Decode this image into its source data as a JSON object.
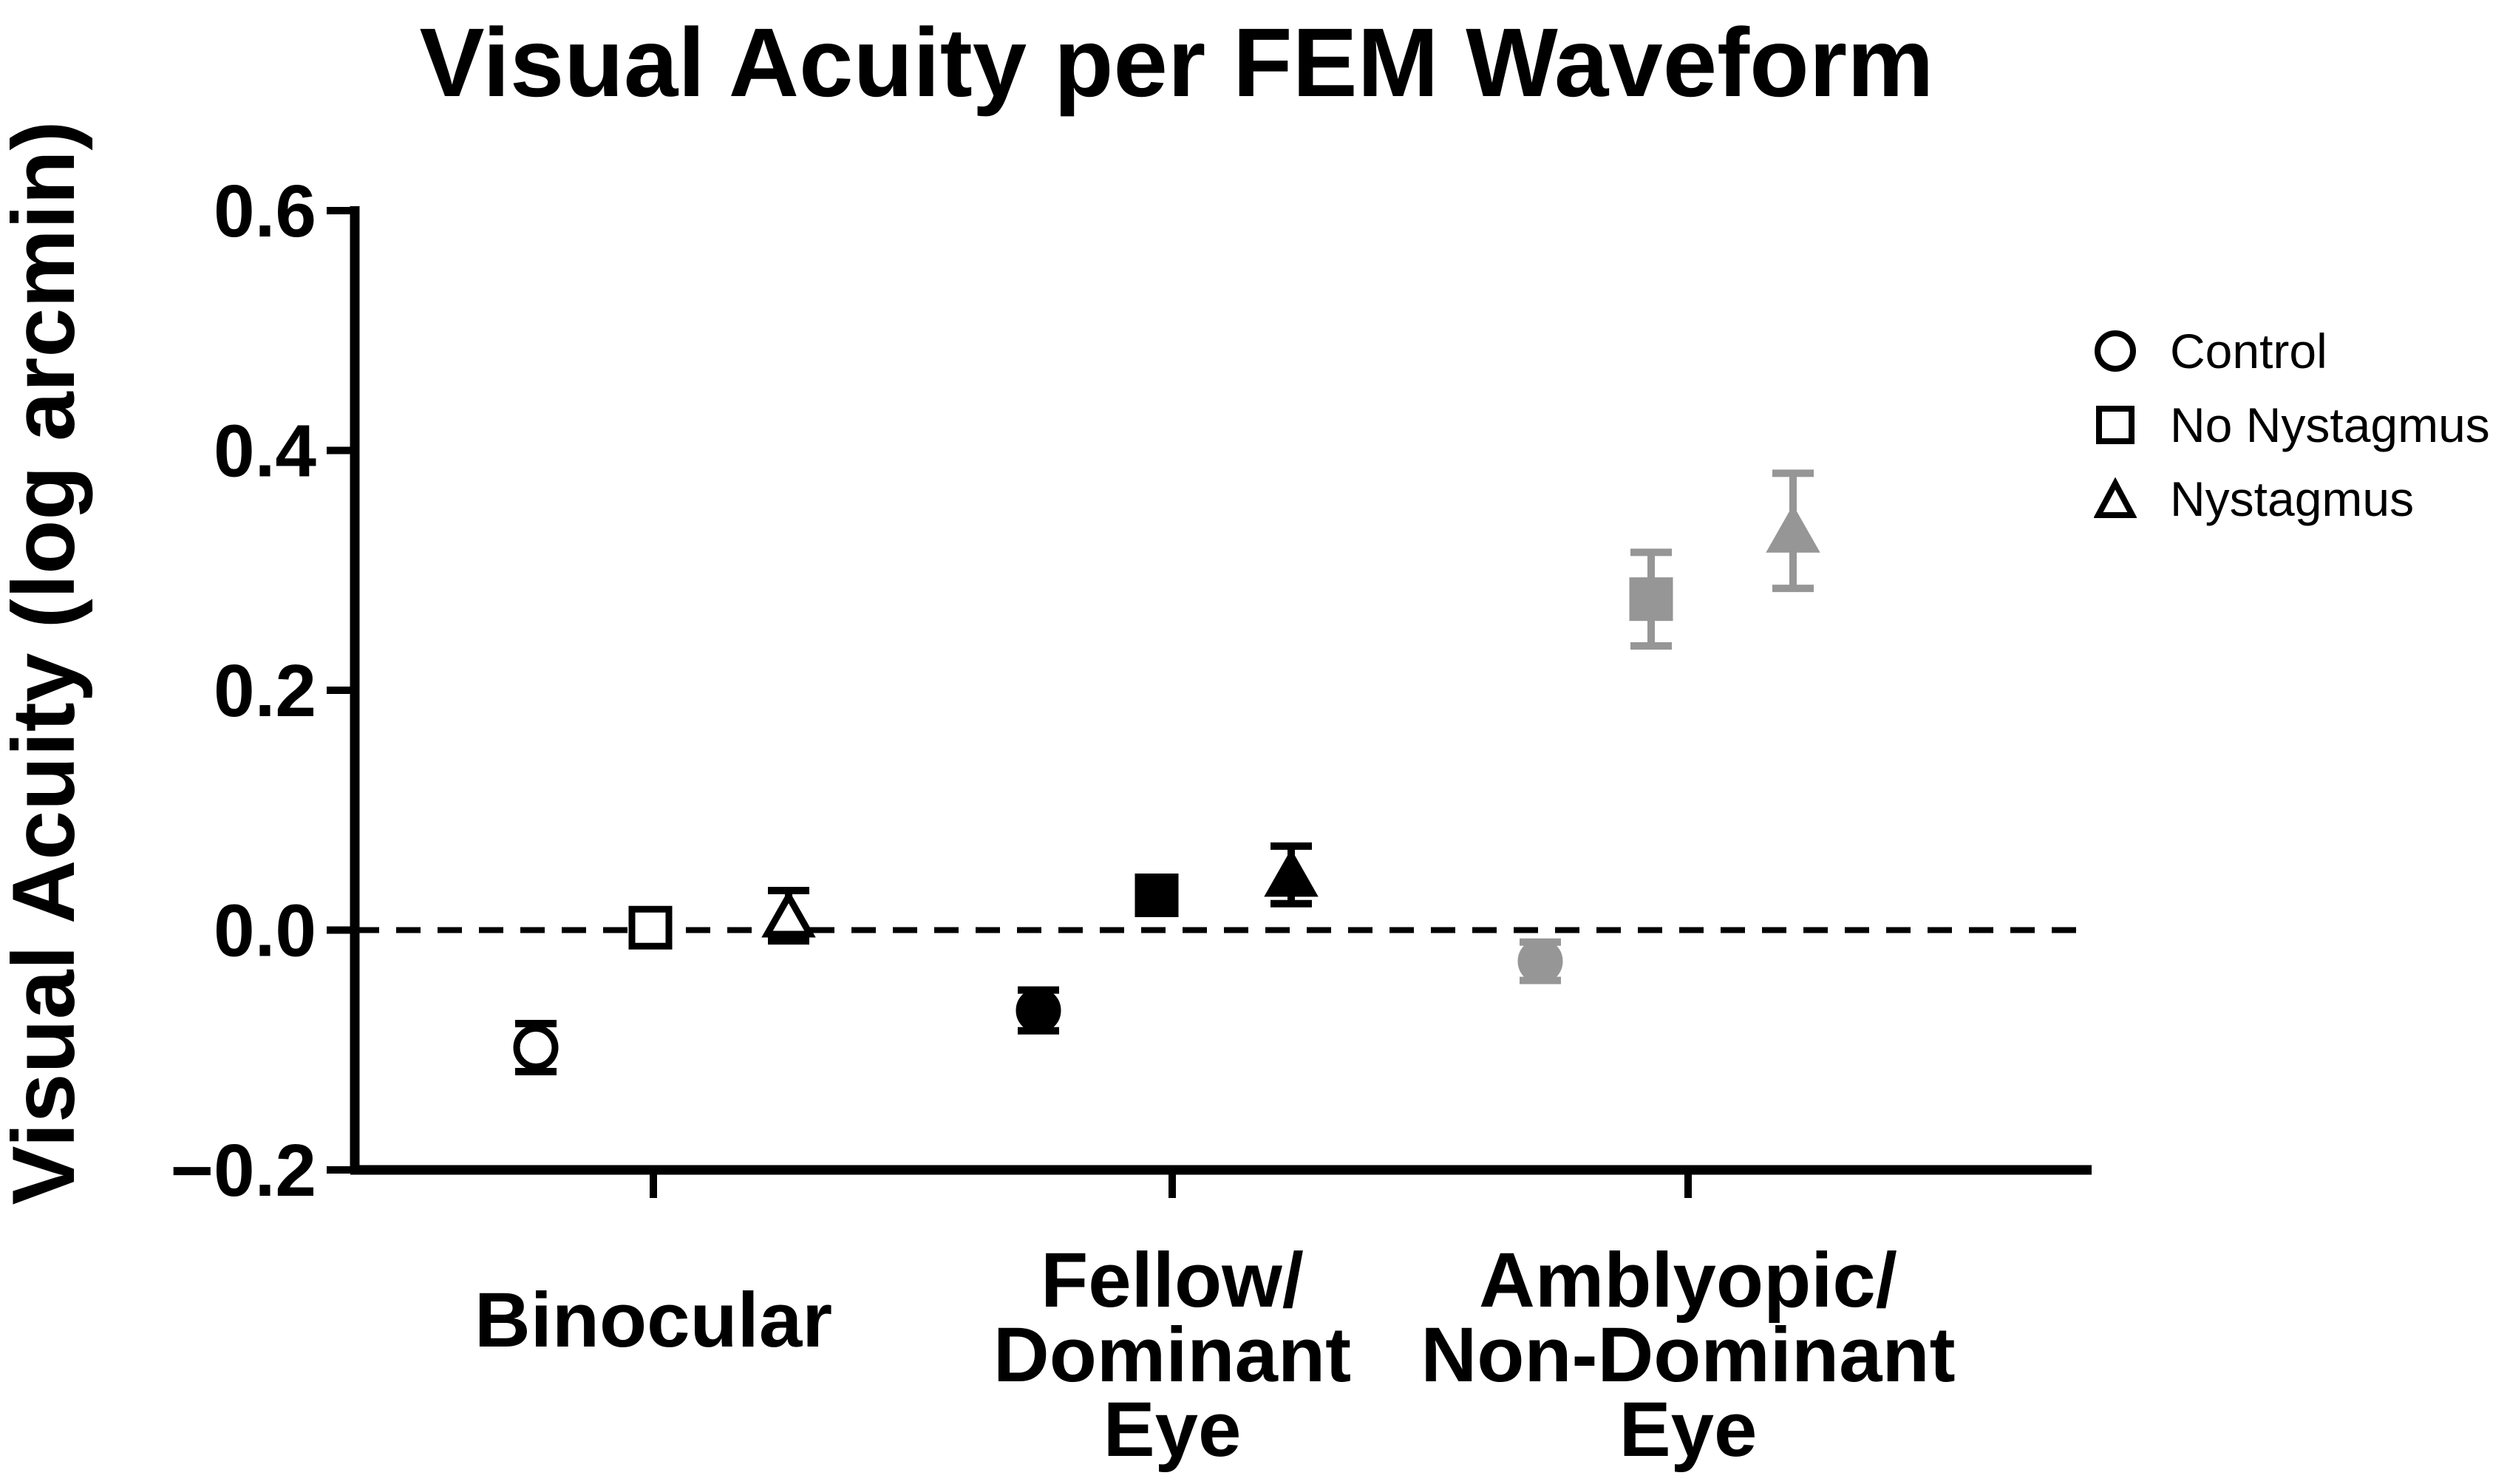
{
  "title": "Visual Acuity per FEM Waveform",
  "colors": {
    "black": "#000000",
    "gray_marker": "#969696",
    "background": "#ffffff"
  },
  "legend": {
    "items": [
      {
        "label": "Control",
        "marker": "circle"
      },
      {
        "label": "No Nystagmus",
        "marker": "square"
      },
      {
        "label": "Nystagmus",
        "marker": "triangle"
      }
    ]
  },
  "chart_data": {
    "type": "scatter",
    "title": "Visual Acuity per FEM Waveform",
    "xlabel": "",
    "ylabel": "Visual Acuity (log arcmin)",
    "ylim": [
      -0.2,
      0.6
    ],
    "grid": false,
    "legend_position": "right",
    "zero_line": {
      "value": 0.0,
      "style": "dashed"
    },
    "yticks": [
      {
        "v": 0.6,
        "label": "0.6"
      },
      {
        "v": 0.4,
        "label": "0.4"
      },
      {
        "v": 0.2,
        "label": "0.2"
      },
      {
        "v": 0.0,
        "label": "0.0"
      },
      {
        "v": -0.2,
        "label": "−0.2"
      }
    ],
    "categories": [
      {
        "lines": [
          "Binocular"
        ]
      },
      {
        "lines": [
          "Fellow/",
          "Dominant",
          "Eye"
        ]
      },
      {
        "lines": [
          "Amblyopic/",
          "Non-Dominant",
          "Eye"
        ]
      }
    ],
    "group_styles": [
      {
        "name": "open",
        "fill": "#ffffff",
        "stroke": "#000000"
      },
      {
        "name": "filled-black",
        "fill": "#000000",
        "stroke": "#000000"
      },
      {
        "name": "filled-gray",
        "fill": "#969696",
        "stroke": "#969696"
      }
    ],
    "series": [
      {
        "name": "Control",
        "marker": "circle",
        "points": [
          {
            "group": 0,
            "value": -0.098,
            "error": 0.02,
            "dx": -159
          },
          {
            "group": 1,
            "value": -0.067,
            "error": 0.017,
            "dx": -181
          },
          {
            "group": 2,
            "value": -0.026,
            "error": 0.016,
            "dx": -200
          }
        ]
      },
      {
        "name": "No Nystagmus",
        "marker": "square",
        "points": [
          {
            "group": 0,
            "value": 0.002,
            "error": 0.008,
            "dx": -4
          },
          {
            "group": 1,
            "value": 0.029,
            "error": 0.014,
            "dx": -21
          },
          {
            "group": 2,
            "value": 0.276,
            "error": 0.039,
            "dx": -50
          }
        ]
      },
      {
        "name": "Nystagmus",
        "marker": "triangle",
        "points": [
          {
            "group": 0,
            "value": 0.012,
            "error": 0.021,
            "dx": 183
          },
          {
            "group": 1,
            "value": 0.046,
            "error": 0.024,
            "dx": 161
          },
          {
            "group": 2,
            "value": 0.333,
            "error": 0.048,
            "dx": 142
          }
        ]
      }
    ]
  }
}
